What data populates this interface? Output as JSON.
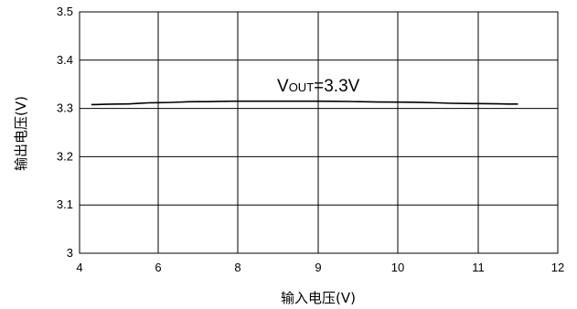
{
  "chart_data": {
    "type": "line",
    "xlabel": "输入电压(V)",
    "ylabel": "输出电压(V)",
    "x_ticks": [
      4,
      6,
      8,
      9,
      10,
      11,
      12
    ],
    "x_tick_labels": [
      "4",
      "6",
      "8",
      "9",
      "10",
      "11",
      "12"
    ],
    "y_ticks": [
      3.0,
      3.1,
      3.2,
      3.3,
      3.4,
      3.5
    ],
    "y_tick_labels": [
      "3",
      "3.1",
      "3.2",
      "3.3",
      "3.4",
      "3.5"
    ],
    "ylim": [
      3.0,
      3.5
    ],
    "grid": true,
    "legend": "none",
    "series": [
      {
        "x": [
          4.3,
          5.0,
          6.0,
          7.0,
          8.0,
          8.5,
          9.0,
          10.0,
          11.0,
          11.5
        ],
        "y": [
          3.308,
          3.309,
          3.312,
          3.314,
          3.315,
          3.315,
          3.315,
          3.313,
          3.31,
          3.309
        ],
        "color": "#000000"
      }
    ],
    "annotation": {
      "main": "V",
      "sub": "OUT",
      "rest": "=3.3V"
    }
  }
}
